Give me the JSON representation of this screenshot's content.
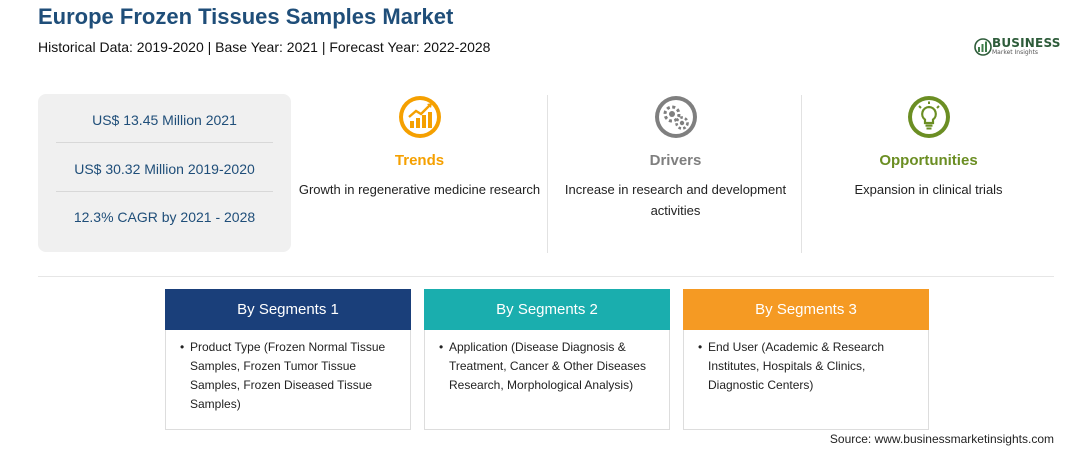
{
  "header": {
    "title": "Europe Frozen Tissues Samples Market",
    "subtitle": "Historical Data: 2019-2020 | Base Year: 2021 | Forecast Year: 2022-2028"
  },
  "logo": {
    "word": "BUSINESS",
    "sub": "Market Insights"
  },
  "stats": [
    "US$ 13.45 Million 2021",
    "US$ 30.32 Million 2019-2020",
    "12.3% CAGR by 2021 - 2028"
  ],
  "columns": [
    {
      "heading": "Trends",
      "text": "Growth in regenerative medicine research",
      "color": "#f5a000",
      "icon": "chart-up-icon"
    },
    {
      "heading": "Drivers",
      "text": "Increase in research and development activities",
      "color": "#7f7f7f",
      "icon": "gears-icon"
    },
    {
      "heading": "Opportunities",
      "text": "Expansion in clinical trials",
      "color": "#6b8e23",
      "icon": "lightbulb-icon"
    }
  ],
  "segments": [
    {
      "title": "By Segments 1",
      "bullet": "•",
      "text": "Product Type (Frozen Normal Tissue Samples, Frozen Tumor Tissue Samples, Frozen Diseased Tissue Samples)",
      "color": "#1a3f7a"
    },
    {
      "title": "By Segments 2",
      "bullet": "•",
      "text": "Application (Disease Diagnosis & Treatment, Cancer & Other Diseases Research, Morphological Analysis)",
      "color": "#1aaeae"
    },
    {
      "title": "By Segments 3",
      "bullet": "•",
      "text": "End User (Academic & Research Institutes, Hospitals & Clinics, Diagnostic Centers)",
      "color": "#f59a23"
    }
  ],
  "source": "Source: www.businessmarketinsights.com"
}
